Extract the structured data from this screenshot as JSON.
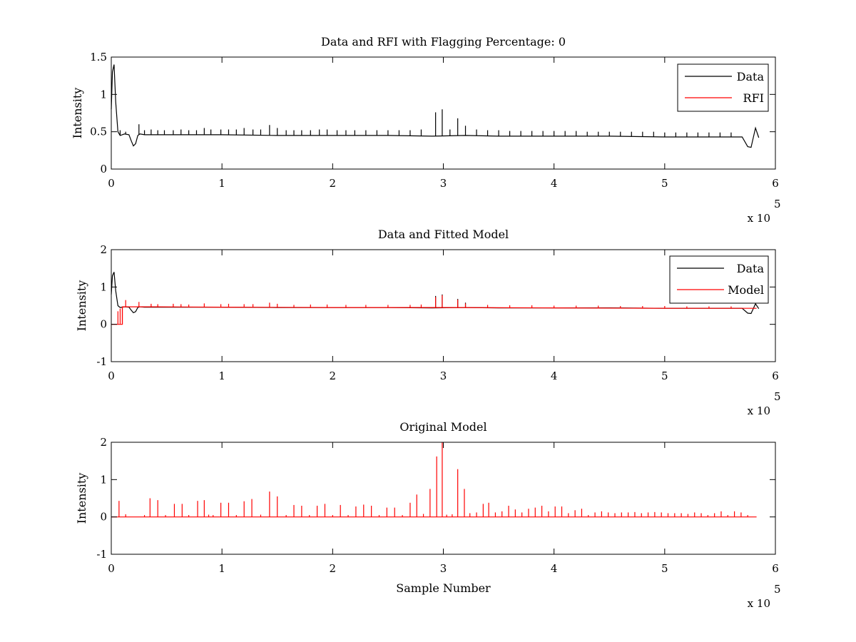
{
  "colors": {
    "data": "#000000",
    "model": "#ff0000",
    "axes": "#000000",
    "background": "#ffffff"
  },
  "chart_data": [
    {
      "type": "line",
      "title": "Data and RFI with Flagging Percentage: 0",
      "xlabel": "",
      "ylabel": "Intensity",
      "xlim": [
        0,
        600000
      ],
      "ylim": [
        0,
        1.5
      ],
      "x_ticks": [
        0,
        100000,
        200000,
        300000,
        400000,
        500000,
        600000
      ],
      "x_tick_labels": [
        "0",
        "1",
        "2",
        "3",
        "4",
        "5",
        "6"
      ],
      "y_ticks": [
        0,
        0.5,
        1,
        1.5
      ],
      "y_tick_labels": [
        "0",
        "0.5",
        "1",
        "1.5"
      ],
      "x_exponent_prefix": "x 10",
      "x_exponent": "5",
      "grid": false,
      "legend": "top-right",
      "series": [
        {
          "name": "Data",
          "color": "#000000",
          "x": [
            0,
            1000,
            2500,
            4000,
            6000,
            8000,
            12000,
            16000,
            18000,
            20000,
            22000,
            24000,
            26000,
            30000,
            60000,
            100000,
            150000,
            200000,
            250000,
            290000,
            320000,
            350000,
            400000,
            450000,
            500000,
            540000,
            570000,
            575000,
            578000,
            582000,
            585000
          ],
          "y": [
            0.8,
            1.3,
            1.4,
            0.9,
            0.5,
            0.45,
            0.47,
            0.46,
            0.38,
            0.31,
            0.34,
            0.45,
            0.47,
            0.46,
            0.46,
            0.46,
            0.45,
            0.45,
            0.45,
            0.44,
            0.45,
            0.44,
            0.44,
            0.44,
            0.43,
            0.43,
            0.43,
            0.3,
            0.29,
            0.55,
            0.42
          ],
          "spikes_x": [
            8000,
            13000,
            25000,
            30000,
            36000,
            42000,
            48000,
            56000,
            63000,
            70000,
            77000,
            84000,
            90000,
            99000,
            106000,
            113000,
            120000,
            128000,
            135000,
            143000,
            150000,
            158000,
            165000,
            172000,
            180000,
            188000,
            195000,
            204000,
            212000,
            220000,
            230000,
            240000,
            250000,
            260000,
            270000,
            280000,
            293000,
            299000,
            306000,
            313000,
            320000,
            330000,
            340000,
            350000,
            360000,
            370000,
            380000,
            390000,
            400000,
            410000,
            420000,
            430000,
            440000,
            450000,
            460000,
            470000,
            480000,
            490000,
            500000,
            510000,
            520000,
            530000,
            540000,
            550000,
            560000
          ],
          "spikes_y": [
            0.52,
            0.5,
            0.6,
            0.52,
            0.53,
            0.52,
            0.52,
            0.52,
            0.53,
            0.52,
            0.52,
            0.55,
            0.53,
            0.53,
            0.53,
            0.53,
            0.55,
            0.53,
            0.53,
            0.59,
            0.55,
            0.52,
            0.52,
            0.52,
            0.52,
            0.53,
            0.53,
            0.52,
            0.52,
            0.52,
            0.52,
            0.52,
            0.52,
            0.52,
            0.52,
            0.53,
            0.76,
            0.8,
            0.53,
            0.68,
            0.58,
            0.53,
            0.52,
            0.52,
            0.51,
            0.51,
            0.51,
            0.51,
            0.51,
            0.51,
            0.51,
            0.5,
            0.5,
            0.5,
            0.5,
            0.5,
            0.5,
            0.5,
            0.49,
            0.49,
            0.49,
            0.49,
            0.49,
            0.49,
            0.49
          ]
        },
        {
          "name": "RFI",
          "color": "#ff0000",
          "x": [],
          "y": []
        }
      ]
    },
    {
      "type": "line",
      "title": "Data and Fitted Model",
      "xlabel": "",
      "ylabel": "Intensity",
      "xlim": [
        0,
        600000
      ],
      "ylim": [
        -1,
        2
      ],
      "x_ticks": [
        0,
        100000,
        200000,
        300000,
        400000,
        500000,
        600000
      ],
      "x_tick_labels": [
        "0",
        "1",
        "2",
        "3",
        "4",
        "5",
        "6"
      ],
      "y_ticks": [
        -1,
        0,
        1,
        2
      ],
      "y_tick_labels": [
        "-1",
        "0",
        "1",
        "2"
      ],
      "x_exponent_prefix": "x 10",
      "x_exponent": "5",
      "grid": false,
      "legend": "top-right",
      "series": [
        {
          "name": "Data",
          "color": "#000000",
          "x": [
            0,
            1000,
            2500,
            4000,
            6000,
            8000,
            12000,
            16000,
            18000,
            20000,
            22000,
            24000,
            26000,
            30000,
            60000,
            100000,
            150000,
            200000,
            250000,
            290000,
            320000,
            350000,
            400000,
            450000,
            500000,
            540000,
            570000,
            575000,
            578000,
            582000,
            585000
          ],
          "y": [
            0.8,
            1.3,
            1.4,
            0.9,
            0.5,
            0.45,
            0.47,
            0.46,
            0.38,
            0.31,
            0.34,
            0.45,
            0.47,
            0.46,
            0.46,
            0.46,
            0.45,
            0.45,
            0.45,
            0.44,
            0.45,
            0.44,
            0.44,
            0.44,
            0.43,
            0.43,
            0.43,
            0.3,
            0.29,
            0.55,
            0.42
          ],
          "spikes_x": [
            293000,
            299000,
            313000,
            320000
          ],
          "spikes_y": [
            0.76,
            0.8,
            0.68,
            0.58
          ]
        },
        {
          "name": "Model",
          "color": "#ff0000",
          "x": [
            0,
            10000,
            10001,
            40000,
            100000,
            200000,
            300000,
            400000,
            500000,
            583000
          ],
          "y": [
            0,
            0,
            0.47,
            0.47,
            0.46,
            0.45,
            0.45,
            0.44,
            0.43,
            0.43
          ],
          "steps_x": [
            6000,
            8000,
            10000
          ],
          "steps_y": [
            0.35,
            0.42,
            0.47
          ],
          "spikes_x": [
            13000,
            25000,
            36000,
            42000,
            56000,
            63000,
            70000,
            84000,
            99000,
            106000,
            120000,
            128000,
            143000,
            150000,
            165000,
            180000,
            195000,
            212000,
            230000,
            250000,
            270000,
            280000,
            293000,
            299000,
            313000,
            320000,
            340000,
            360000,
            380000,
            400000,
            420000,
            440000,
            460000,
            480000,
            500000,
            520000,
            540000,
            560000
          ],
          "spikes_y": [
            0.65,
            0.6,
            0.55,
            0.54,
            0.55,
            0.54,
            0.53,
            0.56,
            0.54,
            0.55,
            0.54,
            0.54,
            0.58,
            0.55,
            0.52,
            0.53,
            0.53,
            0.52,
            0.52,
            0.52,
            0.52,
            0.53,
            0.73,
            0.78,
            0.66,
            0.56,
            0.52,
            0.51,
            0.51,
            0.5,
            0.5,
            0.5,
            0.49,
            0.49,
            0.49,
            0.48,
            0.48,
            0.48
          ]
        }
      ]
    },
    {
      "type": "line",
      "title": "Original Model",
      "xlabel": "Sample Number",
      "ylabel": "Intensity",
      "xlim": [
        0,
        600000
      ],
      "ylim": [
        -1,
        2
      ],
      "x_ticks": [
        0,
        100000,
        200000,
        300000,
        400000,
        500000,
        600000
      ],
      "x_tick_labels": [
        "0",
        "1",
        "2",
        "3",
        "4",
        "5",
        "6"
      ],
      "y_ticks": [
        -1,
        0,
        1,
        2
      ],
      "y_tick_labels": [
        "-1",
        "0",
        "1",
        "2"
      ],
      "x_exponent_prefix": "x 10",
      "x_exponent": "5",
      "grid": false,
      "series": [
        {
          "color": "#ff0000",
          "x": [
            0,
            583000
          ],
          "y": [
            0,
            0
          ],
          "spikes_x": [
            7000,
            13000,
            30000,
            35000,
            42000,
            49000,
            57000,
            64000,
            70000,
            78000,
            84000,
            88000,
            92000,
            99000,
            106000,
            113000,
            120000,
            127000,
            135000,
            143000,
            150000,
            158000,
            165000,
            172000,
            179000,
            186000,
            193000,
            200000,
            207000,
            214000,
            221000,
            228000,
            235000,
            242000,
            249000,
            256000,
            263000,
            270000,
            276000,
            282000,
            288000,
            294000,
            299000,
            303000,
            308000,
            313000,
            319000,
            324000,
            330000,
            336000,
            341000,
            347000,
            353000,
            359000,
            365000,
            371000,
            377000,
            383000,
            389000,
            395000,
            401000,
            407000,
            413000,
            419000,
            425000,
            431000,
            437000,
            443000,
            449000,
            455000,
            461000,
            467000,
            473000,
            479000,
            485000,
            491000,
            497000,
            503000,
            509000,
            515000,
            521000,
            527000,
            533000,
            539000,
            545000,
            551000,
            557000,
            563000,
            569000,
            575000
          ],
          "spikes_y": [
            0.43,
            0.07,
            0.05,
            0.5,
            0.45,
            0.05,
            0.35,
            0.35,
            0.05,
            0.43,
            0.45,
            0.06,
            0.05,
            0.38,
            0.38,
            0.05,
            0.42,
            0.48,
            0.06,
            0.68,
            0.55,
            0.05,
            0.32,
            0.3,
            0.05,
            0.3,
            0.35,
            0.05,
            0.32,
            0.05,
            0.28,
            0.33,
            0.3,
            0.05,
            0.25,
            0.25,
            0.05,
            0.38,
            0.6,
            0.08,
            0.75,
            1.62,
            2.0,
            0.06,
            0.07,
            1.28,
            0.75,
            0.1,
            0.12,
            0.35,
            0.38,
            0.12,
            0.15,
            0.3,
            0.2,
            0.12,
            0.22,
            0.25,
            0.3,
            0.15,
            0.28,
            0.28,
            0.1,
            0.18,
            0.22,
            0.05,
            0.12,
            0.15,
            0.12,
            0.1,
            0.12,
            0.12,
            0.13,
            0.1,
            0.12,
            0.13,
            0.12,
            0.1,
            0.1,
            0.1,
            0.08,
            0.12,
            0.1,
            0.05,
            0.1,
            0.15,
            0.05,
            0.15,
            0.12,
            0.05
          ]
        }
      ]
    }
  ]
}
